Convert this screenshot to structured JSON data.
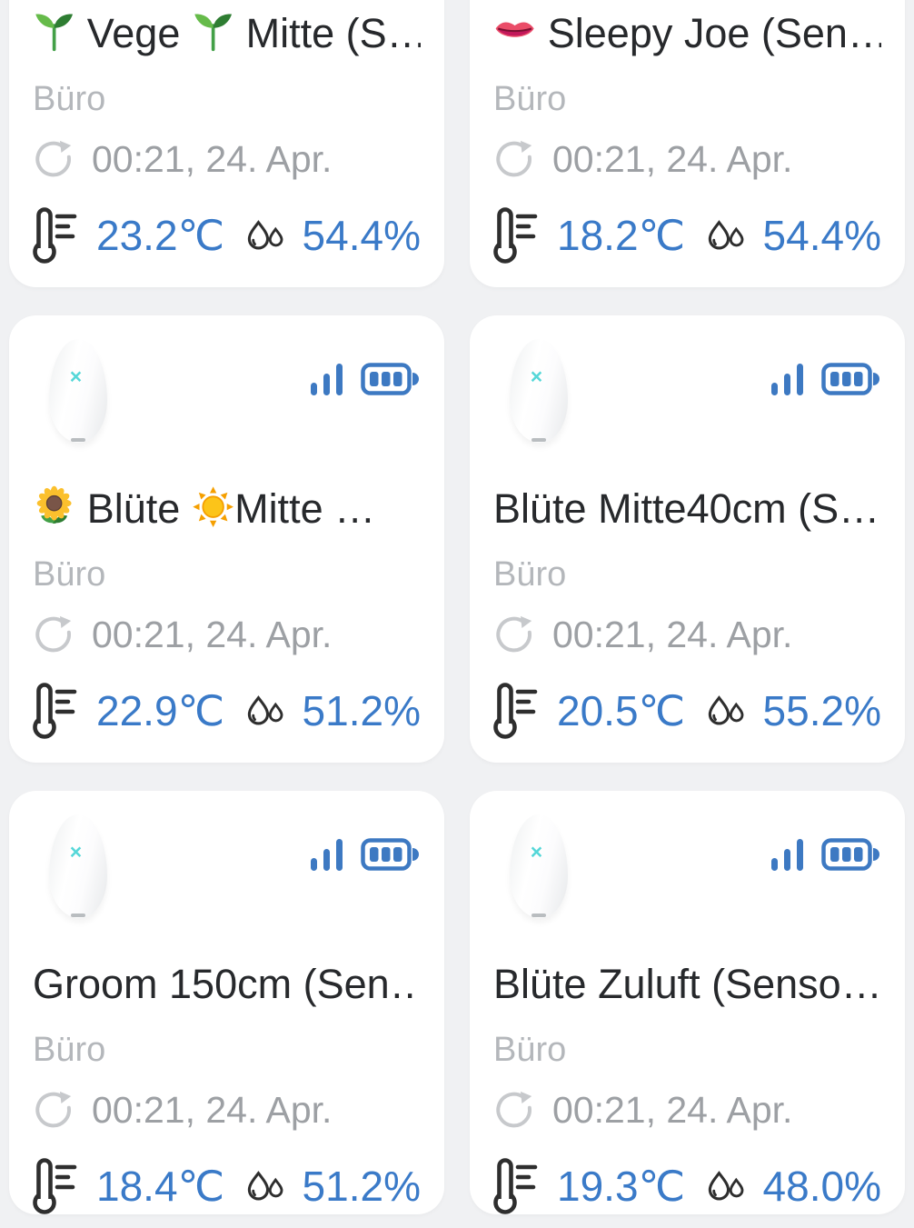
{
  "colors": {
    "page_bg": "#f0f1f3",
    "card_bg": "#ffffff",
    "title_text": "#27292c",
    "room_text": "#b4b7bb",
    "timestamp_text": "#9da0a4",
    "value_text": "#3a7ac8",
    "status_icon_blue": "#3d79c2",
    "measure_icon_dark": "#2e2e2e",
    "refresh_icon_grey": "#c7c9cc",
    "device_brand_mark_cyan": "#55d7d8"
  },
  "icons": {
    "refresh": "refresh-icon",
    "temperature": "thermometer-icon",
    "humidity": "water-drops-icon",
    "signal": "signal-strength-icon",
    "battery": "battery-full-icon",
    "device_brand_mark": "×"
  },
  "shared": {
    "room": "Büro",
    "updated": "00:21, 24. Apr."
  },
  "cards": [
    {
      "title": "🌱 Vege 🌱 Mitte (S…",
      "room": "Büro",
      "updated": "00:21, 24. Apr.",
      "temperature": "23.2℃",
      "humidity": "54.4%"
    },
    {
      "title": "👄 Sleepy Joe  (Sen…",
      "room": "Büro",
      "updated": "00:21, 24. Apr.",
      "temperature": "18.2℃",
      "humidity": "54.4%"
    },
    {
      "title": "🌻 Blüte ☀️Mitte …",
      "room": "Büro",
      "updated": "00:21, 24. Apr.",
      "temperature": "22.9℃",
      "humidity": "51.2%"
    },
    {
      "title": "Blüte Mitte40cm (S…",
      "room": "Büro",
      "updated": "00:21, 24. Apr.",
      "temperature": "20.5℃",
      "humidity": "55.2%"
    },
    {
      "title": "Groom 150cm (Sen…",
      "room": "Büro",
      "updated": "00:21, 24. Apr.",
      "temperature": "18.4℃",
      "humidity": "51.2%"
    },
    {
      "title": "Blüte Zuluft (Senso…",
      "room": "Büro",
      "updated": "00:21, 24. Apr.",
      "temperature": "19.3℃",
      "humidity": "48.0%"
    }
  ]
}
